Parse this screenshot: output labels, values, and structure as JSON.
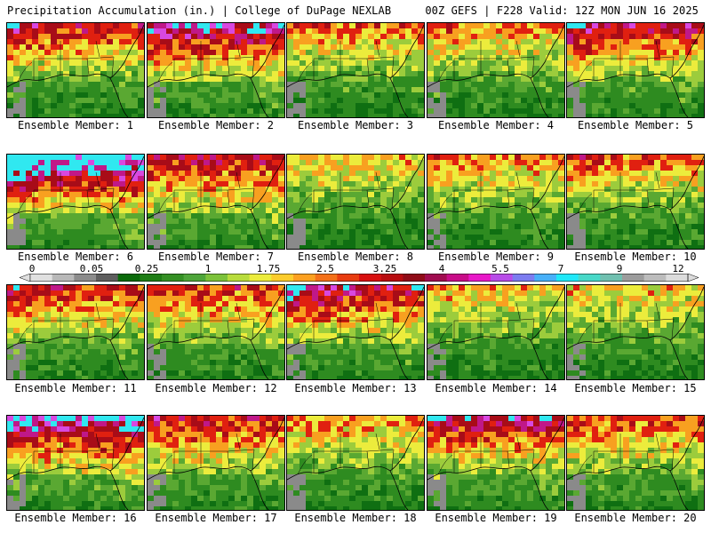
{
  "header": {
    "left": "Precipitation Accumulation (in.) | College of DuPage NEXLAB",
    "right": "00Z GEFS | F228 Valid: 12Z MON JUN 16 2025"
  },
  "members": [
    {
      "label": "Ensemble Member: 1",
      "wet": 0.55,
      "north": 0.8,
      "west": 0.9,
      "east": 0.4
    },
    {
      "label": "Ensemble Member: 2",
      "wet": 0.65,
      "north": 0.85,
      "west": 0.6,
      "east": 0.55
    },
    {
      "label": "Ensemble Member: 3",
      "wet": 0.5,
      "north": 0.7,
      "west": 0.5,
      "east": 0.45
    },
    {
      "label": "Ensemble Member: 4",
      "wet": 0.5,
      "north": 0.6,
      "west": 0.75,
      "east": 0.5
    },
    {
      "label": "Ensemble Member: 5",
      "wet": 0.6,
      "north": 0.75,
      "west": 0.85,
      "east": 0.55
    },
    {
      "label": "Ensemble Member: 6",
      "wet": 0.75,
      "north": 0.9,
      "west": 0.95,
      "east": 0.55
    },
    {
      "label": "Ensemble Member: 7",
      "wet": 0.65,
      "north": 0.6,
      "west": 0.5,
      "east": 0.6
    },
    {
      "label": "Ensemble Member: 8",
      "wet": 0.45,
      "north": 0.65,
      "west": 0.4,
      "east": 0.4
    },
    {
      "label": "Ensemble Member: 9",
      "wet": 0.5,
      "north": 0.65,
      "west": 0.55,
      "east": 0.45
    },
    {
      "label": "Ensemble Member: 10",
      "wet": 0.5,
      "north": 0.7,
      "west": 0.7,
      "east": 0.45
    },
    {
      "label": "Ensemble Member: 11",
      "wet": 0.55,
      "north": 0.75,
      "west": 0.8,
      "east": 0.45
    },
    {
      "label": "Ensemble Member: 12",
      "wet": 0.55,
      "north": 0.7,
      "west": 0.55,
      "east": 0.5
    },
    {
      "label": "Ensemble Member: 13",
      "wet": 0.6,
      "north": 0.85,
      "west": 0.9,
      "east": 0.5
    },
    {
      "label": "Ensemble Member: 14",
      "wet": 0.45,
      "north": 0.6,
      "west": 0.6,
      "east": 0.4
    },
    {
      "label": "Ensemble Member: 15",
      "wet": 0.45,
      "north": 0.6,
      "west": 0.5,
      "east": 0.4
    },
    {
      "label": "Ensemble Member: 16",
      "wet": 0.7,
      "north": 0.75,
      "west": 0.8,
      "east": 0.75
    },
    {
      "label": "Ensemble Member: 17",
      "wet": 0.6,
      "north": 0.7,
      "west": 0.55,
      "east": 0.55
    },
    {
      "label": "Ensemble Member: 18",
      "wet": 0.5,
      "north": 0.6,
      "west": 0.5,
      "east": 0.45
    },
    {
      "label": "Ensemble Member: 19",
      "wet": 0.6,
      "north": 0.85,
      "west": 0.6,
      "east": 0.5
    },
    {
      "label": "Ensemble Member: 20",
      "wet": 0.55,
      "north": 0.65,
      "west": 0.6,
      "east": 0.55
    }
  ],
  "colorbar": {
    "labels": [
      "0",
      "0.05",
      "0.25",
      "1",
      "1.75",
      "2.5",
      "3.25",
      "4",
      "5.5",
      "7",
      "9",
      "12"
    ],
    "colors": [
      "#e0e0e0",
      "#b8b8b8",
      "#8c8c8c",
      "#5e5e5e",
      "#0a6a0a",
      "#1e7d16",
      "#349024",
      "#4ea53a",
      "#7cc23a",
      "#b8dc3c",
      "#ecec3c",
      "#fccc2c",
      "#fca020",
      "#f47018",
      "#e83c10",
      "#d81010",
      "#b80c10",
      "#900c18",
      "#a00c50",
      "#c80c88",
      "#e818c8",
      "#b84ce8",
      "#7c7cf0",
      "#48b0f8",
      "#20e8f8",
      "#48d8c8",
      "#70c0b0",
      "#9c9c9c",
      "#bcbcbc",
      "#dcdcdc"
    ]
  },
  "palette": {
    "sea_gray": "#8a8a8a",
    "green_dark": "#0f6f12",
    "green": "#2e8b20",
    "green_light": "#5aa832",
    "lime": "#9ccc3c",
    "yellow": "#ecec3c",
    "orange": "#f8a020",
    "red": "#e02010",
    "darkred": "#a80c18",
    "magenta": "#c01888",
    "violet": "#d848e0",
    "cyan": "#30e8f0"
  }
}
